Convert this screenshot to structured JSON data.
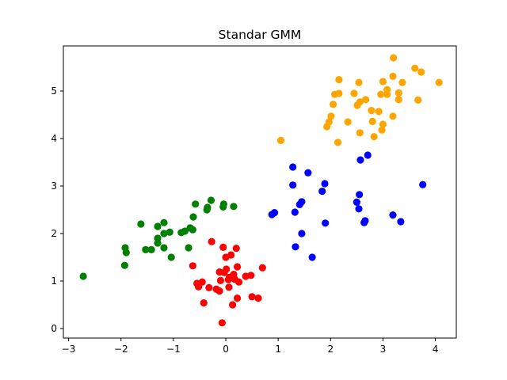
{
  "chart_data": {
    "type": "scatter",
    "title": "Standar GMM",
    "xlabel": "",
    "ylabel": "",
    "xlim": [
      -3.1,
      4.4
    ],
    "ylim": [
      -0.2,
      5.95
    ],
    "xticks": [
      -3,
      -2,
      -1,
      0,
      1,
      2,
      3,
      4
    ],
    "yticks": [
      0,
      1,
      2,
      3,
      4,
      5
    ],
    "grid": false,
    "series": [
      {
        "color": "#008000",
        "points": [
          [
            -2.72,
            1.1
          ],
          [
            -1.92,
            1.7
          ],
          [
            -1.9,
            1.6
          ],
          [
            -1.93,
            1.33
          ],
          [
            -1.62,
            2.2
          ],
          [
            -1.53,
            1.66
          ],
          [
            -1.42,
            1.66
          ],
          [
            -1.3,
            1.8
          ],
          [
            -1.3,
            1.9
          ],
          [
            -1.3,
            2.15
          ],
          [
            -1.18,
            2.23
          ],
          [
            -1.18,
            2.0
          ],
          [
            -1.18,
            1.7
          ],
          [
            -1.07,
            2.03
          ],
          [
            -1.04,
            1.5
          ],
          [
            -0.85,
            2.02
          ],
          [
            -0.78,
            2.05
          ],
          [
            -0.71,
            1.7
          ],
          [
            -0.68,
            2.12
          ],
          [
            -0.63,
            2.08
          ],
          [
            -0.62,
            2.35
          ],
          [
            -0.58,
            2.62
          ],
          [
            -0.36,
            2.5
          ],
          [
            -0.35,
            2.55
          ],
          [
            -0.28,
            2.7
          ],
          [
            -0.05,
            2.56
          ],
          [
            -0.04,
            2.62
          ],
          [
            0.15,
            2.57
          ]
        ]
      },
      {
        "color": "#ff0000",
        "points": [
          [
            -0.63,
            1.32
          ],
          [
            -0.55,
            0.95
          ],
          [
            -0.52,
            0.88
          ],
          [
            -0.45,
            0.98
          ],
          [
            -0.42,
            0.54
          ],
          [
            -0.32,
            0.86
          ],
          [
            -0.27,
            1.83
          ],
          [
            -0.18,
            0.83
          ],
          [
            -0.12,
            0.79
          ],
          [
            -0.12,
            1.19
          ],
          [
            -0.1,
            1.01
          ],
          [
            -0.05,
            1.71
          ],
          [
            -0.07,
            0.12
          ],
          [
            -0.03,
            1.18
          ],
          [
            0.0,
            1.5
          ],
          [
            0.01,
            1.25
          ],
          [
            0.05,
            1.03
          ],
          [
            0.07,
            1.08
          ],
          [
            0.06,
            0.87
          ],
          [
            0.1,
            1.55
          ],
          [
            0.13,
            0.5
          ],
          [
            0.15,
            1.14
          ],
          [
            0.17,
            1.04
          ],
          [
            0.2,
            1.69
          ],
          [
            0.22,
            1.3
          ],
          [
            0.22,
            0.64
          ],
          [
            0.25,
            0.98
          ],
          [
            0.38,
            1.1
          ],
          [
            0.48,
            1.12
          ],
          [
            0.5,
            0.67
          ],
          [
            0.62,
            0.64
          ],
          [
            0.7,
            1.28
          ]
        ]
      },
      {
        "color": "#0000ff",
        "points": [
          [
            0.88,
            2.4
          ],
          [
            0.93,
            2.44
          ],
          [
            1.28,
            3.4
          ],
          [
            1.28,
            3.02
          ],
          [
            1.32,
            2.45
          ],
          [
            1.33,
            1.72
          ],
          [
            1.41,
            2.61
          ],
          [
            1.45,
            2.67
          ],
          [
            1.45,
            2.0
          ],
          [
            1.57,
            3.28
          ],
          [
            1.65,
            1.5
          ],
          [
            1.84,
            2.89
          ],
          [
            1.89,
            3.05
          ],
          [
            1.9,
            2.22
          ],
          [
            2.5,
            2.66
          ],
          [
            2.54,
            2.52
          ],
          [
            2.55,
            2.82
          ],
          [
            2.57,
            3.55
          ],
          [
            2.64,
            2.23
          ],
          [
            2.66,
            2.27
          ],
          [
            2.71,
            3.65
          ],
          [
            3.19,
            2.39
          ],
          [
            3.34,
            2.25
          ],
          [
            3.76,
            3.03
          ]
        ]
      },
      {
        "color": "#ffa500",
        "points": [
          [
            1.05,
            3.96
          ],
          [
            1.93,
            4.25
          ],
          [
            1.97,
            4.35
          ],
          [
            2.01,
            4.47
          ],
          [
            2.05,
            4.72
          ],
          [
            2.08,
            4.93
          ],
          [
            2.14,
            3.92
          ],
          [
            2.16,
            5.24
          ],
          [
            2.16,
            4.95
          ],
          [
            2.33,
            4.35
          ],
          [
            2.45,
            4.95
          ],
          [
            2.51,
            4.7
          ],
          [
            2.54,
            5.18
          ],
          [
            2.56,
            4.77
          ],
          [
            2.56,
            4.12
          ],
          [
            2.67,
            4.82
          ],
          [
            2.78,
            4.59
          ],
          [
            2.8,
            4.36
          ],
          [
            2.83,
            4.04
          ],
          [
            2.92,
            4.57
          ],
          [
            2.96,
            4.93
          ],
          [
            2.98,
            4.18
          ],
          [
            3.0,
            4.3
          ],
          [
            3.0,
            5.2
          ],
          [
            3.08,
            5.03
          ],
          [
            3.08,
            4.93
          ],
          [
            3.19,
            5.31
          ],
          [
            3.19,
            4.47
          ],
          [
            3.2,
            5.7
          ],
          [
            3.3,
            4.82
          ],
          [
            3.3,
            4.96
          ],
          [
            3.37,
            5.18
          ],
          [
            3.61,
            5.48
          ],
          [
            3.67,
            4.81
          ],
          [
            3.73,
            5.4
          ],
          [
            4.07,
            5.18
          ]
        ]
      }
    ]
  }
}
